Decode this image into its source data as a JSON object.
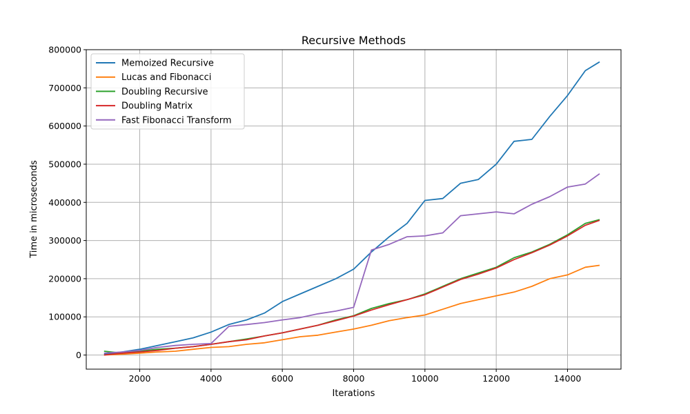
{
  "chart_data": {
    "type": "line",
    "title": "Recursive Methods",
    "xlabel": "Iterations",
    "ylabel": "Time in microseconds",
    "xlim": [
      500,
      15500
    ],
    "ylim": [
      -37000,
      800000
    ],
    "xticks": [
      2000,
      4000,
      6000,
      8000,
      10000,
      12000,
      14000
    ],
    "yticks": [
      0,
      100000,
      200000,
      300000,
      400000,
      500000,
      600000,
      700000,
      800000
    ],
    "grid": true,
    "legend_position": "upper-left",
    "x": [
      1000,
      1500,
      2000,
      2500,
      3000,
      3500,
      4000,
      4500,
      5000,
      5500,
      6000,
      6500,
      7000,
      7500,
      8000,
      8500,
      9000,
      9500,
      10000,
      10500,
      11000,
      11500,
      12000,
      12500,
      13000,
      13500,
      14000,
      14500,
      14900
    ],
    "series": [
      {
        "name": "Memoized Recursive",
        "color": "#1f77b4",
        "values": [
          2000,
          8000,
          15000,
          25000,
          35000,
          45000,
          60000,
          80000,
          92000,
          110000,
          140000,
          160000,
          180000,
          200000,
          225000,
          270000,
          310000,
          345000,
          405000,
          410000,
          450000,
          460000,
          500000,
          560000,
          565000,
          625000,
          680000,
          745000,
          768000
        ]
      },
      {
        "name": "Lucas and Fibonacci",
        "color": "#ff7f0e",
        "values": [
          0,
          2000,
          5000,
          8000,
          10000,
          15000,
          20000,
          22000,
          28000,
          32000,
          40000,
          48000,
          52000,
          60000,
          68000,
          78000,
          90000,
          98000,
          105000,
          120000,
          135000,
          145000,
          155000,
          165000,
          180000,
          200000,
          210000,
          230000,
          235000
        ]
      },
      {
        "name": "Doubling Recursive",
        "color": "#2ca02c",
        "values": [
          10000,
          5000,
          10000,
          15000,
          18000,
          22000,
          28000,
          35000,
          42000,
          50000,
          58000,
          68000,
          78000,
          92000,
          103000,
          122000,
          135000,
          145000,
          160000,
          180000,
          200000,
          215000,
          230000,
          255000,
          270000,
          290000,
          315000,
          345000,
          355000
        ]
      },
      {
        "name": "Doubling Matrix",
        "color": "#d62728",
        "values": [
          0,
          5000,
          8000,
          12000,
          18000,
          22000,
          28000,
          35000,
          40000,
          50000,
          58000,
          68000,
          78000,
          90000,
          102000,
          118000,
          132000,
          145000,
          158000,
          178000,
          198000,
          212000,
          228000,
          250000,
          268000,
          288000,
          312000,
          340000,
          353000
        ]
      },
      {
        "name": "Fast Fibonacci Transform",
        "color": "#9467bd",
        "values": [
          5000,
          8000,
          12000,
          20000,
          25000,
          28000,
          30000,
          75000,
          80000,
          85000,
          92000,
          98000,
          108000,
          115000,
          125000,
          275000,
          290000,
          310000,
          312000,
          320000,
          365000,
          370000,
          375000,
          370000,
          395000,
          415000,
          440000,
          448000,
          475000
        ]
      }
    ]
  }
}
